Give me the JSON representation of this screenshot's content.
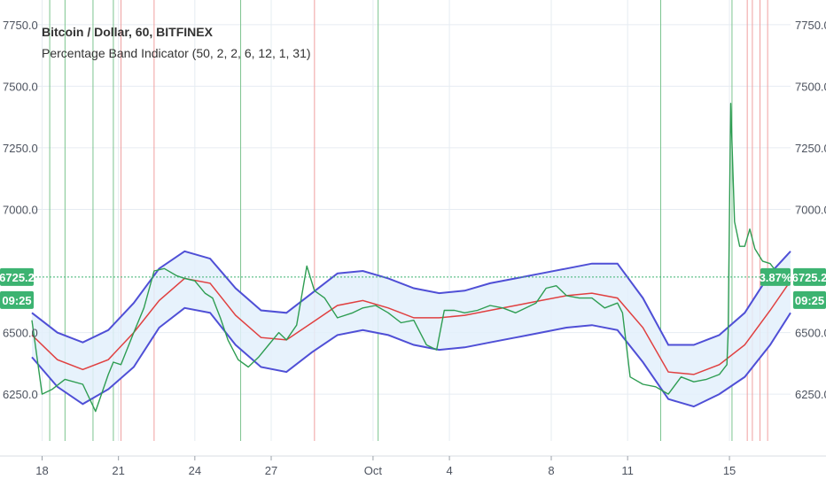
{
  "chart_data": {
    "type": "line",
    "title": "Bitcoin / Dollar, 60, BITFINEX",
    "indicator": "Percentage Band Indicator",
    "indicator_params": "(50, 2, 2, 6, 12, 1, 31)",
    "yticks": [
      "7750.0",
      "7500.0",
      "7250.0",
      "7000.0",
      "6500.0",
      "6250.0"
    ],
    "ytick_values": [
      7750,
      7500,
      7250,
      7000,
      6500,
      6250
    ],
    "ylim": [
      6060,
      7850
    ],
    "xticks": [
      "18",
      "21",
      "24",
      "27",
      "Oct",
      "4",
      "8",
      "11",
      "15"
    ],
    "xtick_positions": [
      0.4,
      3.4,
      6.4,
      9.4,
      13.4,
      16.4,
      20.4,
      23.4,
      27.4
    ],
    "xlim": [
      0,
      29.8
    ],
    "last_price_label": "6725.2",
    "last_price": 6725.2,
    "time_label": "09:25",
    "change_label": "3.87%",
    "grid": true,
    "series": [
      {
        "role": "upper band",
        "x": [
          0,
          1,
          2,
          3,
          4,
          5,
          6,
          7,
          8,
          9,
          10,
          11,
          12,
          13,
          14,
          15,
          16,
          17,
          18,
          19,
          20,
          21,
          22,
          23,
          24,
          25,
          26,
          27,
          28,
          29,
          29.8
        ],
        "values": [
          6580,
          6500,
          6460,
          6510,
          6620,
          6760,
          6830,
          6800,
          6680,
          6590,
          6580,
          6660,
          6740,
          6750,
          6720,
          6680,
          6660,
          6670,
          6700,
          6720,
          6740,
          6760,
          6780,
          6780,
          6640,
          6450,
          6450,
          6490,
          6580,
          6740,
          6830
        ]
      },
      {
        "role": "middle line",
        "x": [
          0,
          1,
          2,
          3,
          4,
          5,
          6,
          7,
          8,
          9,
          10,
          11,
          12,
          13,
          14,
          15,
          16,
          17,
          18,
          19,
          20,
          21,
          22,
          23,
          24,
          25,
          26,
          27,
          28,
          29,
          29.8
        ],
        "values": [
          6490,
          6390,
          6350,
          6390,
          6500,
          6630,
          6720,
          6700,
          6570,
          6480,
          6470,
          6540,
          6610,
          6630,
          6600,
          6560,
          6560,
          6570,
          6590,
          6610,
          6630,
          6650,
          6660,
          6640,
          6520,
          6340,
          6330,
          6370,
          6450,
          6590,
          6710
        ]
      },
      {
        "role": "lower band",
        "x": [
          0,
          1,
          2,
          3,
          4,
          5,
          6,
          7,
          8,
          9,
          10,
          11,
          12,
          13,
          14,
          15,
          16,
          17,
          18,
          19,
          20,
          21,
          22,
          23,
          24,
          25,
          26,
          27,
          28,
          29,
          29.8
        ],
        "values": [
          6400,
          6280,
          6210,
          6270,
          6360,
          6520,
          6600,
          6580,
          6450,
          6360,
          6340,
          6420,
          6490,
          6510,
          6490,
          6450,
          6430,
          6440,
          6460,
          6480,
          6500,
          6520,
          6530,
          6510,
          6380,
          6230,
          6200,
          6250,
          6320,
          6450,
          6580
        ]
      },
      {
        "role": "price",
        "x": [
          0,
          0.4,
          0.8,
          1.3,
          2,
          2.5,
          3,
          3.2,
          3.5,
          4,
          4.4,
          4.8,
          5.2,
          5.7,
          6,
          6.4,
          6.8,
          7.1,
          7.4,
          7.7,
          8.1,
          8.5,
          8.9,
          9.3,
          9.7,
          10,
          10.4,
          10.8,
          11.1,
          11.5,
          12,
          12.6,
          13,
          13.5,
          14,
          14.5,
          15,
          15.5,
          15.9,
          16.2,
          16.6,
          17,
          17.5,
          18,
          18.5,
          19,
          19.4,
          19.8,
          20.2,
          20.6,
          21,
          21.5,
          22,
          22.5,
          23,
          23.2,
          23.5,
          24,
          24.5,
          25,
          25.5,
          26,
          26.5,
          27,
          27.3,
          27.35,
          27.45,
          27.6,
          27.8,
          28,
          28.2,
          28.4,
          28.7,
          29,
          29.3,
          29.6,
          29.8
        ],
        "values": [
          6550,
          6250,
          6270,
          6310,
          6290,
          6180,
          6330,
          6380,
          6370,
          6500,
          6600,
          6750,
          6760,
          6730,
          6720,
          6710,
          6660,
          6640,
          6560,
          6470,
          6390,
          6360,
          6400,
          6450,
          6500,
          6470,
          6530,
          6770,
          6670,
          6640,
          6560,
          6580,
          6600,
          6610,
          6580,
          6540,
          6550,
          6450,
          6430,
          6590,
          6590,
          6580,
          6590,
          6610,
          6600,
          6580,
          6600,
          6620,
          6680,
          6690,
          6650,
          6640,
          6640,
          6600,
          6620,
          6580,
          6320,
          6290,
          6280,
          6250,
          6320,
          6300,
          6310,
          6330,
          6370,
          6500,
          7430,
          6950,
          6850,
          6850,
          6920,
          6840,
          6790,
          6780,
          6740,
          6720,
          6725
        ]
      }
    ],
    "signal_lines": {
      "green_x": [
        0.7,
        1.3,
        2.4,
        3.2,
        8.2,
        13.6,
        24.7,
        27.5
      ],
      "red_x": [
        3.5,
        4.8,
        11.1,
        28.1,
        28.3,
        28.6,
        28.9
      ]
    },
    "colors": {
      "band": "#4f4fd6",
      "band_fill": "#e3f0fb",
      "middle": "#e04040",
      "price": "#2e9d52",
      "signal_green": "#7cc48f",
      "signal_red": "#f0a0a0",
      "grid": "#e6ecf2",
      "axis_text": "#4c525e",
      "price_tag": "#3cb371",
      "price_tag_text": "#ffffff"
    }
  }
}
